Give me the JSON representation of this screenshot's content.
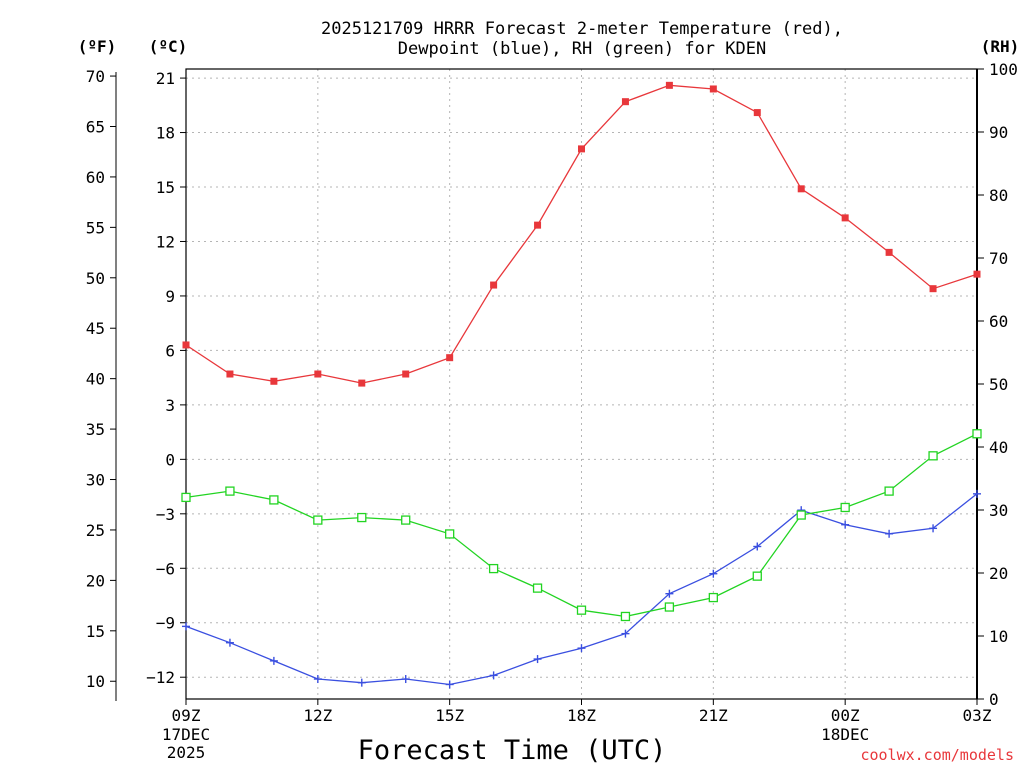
{
  "chart_data": {
    "type": "line",
    "title_line1": "2025121709 HRRR Forecast 2-meter Temperature (red),",
    "title_line2": "Dewpoint (blue), RH (green) for KDEN",
    "xlabel": "Forecast Time (UTC)",
    "units": {
      "fahrenheit": "(ºF)",
      "celsius": "(ºC)",
      "rh": "(RH)"
    },
    "credit": "coolwx.com/models",
    "x_hours": [
      0,
      1,
      2,
      3,
      4,
      5,
      6,
      7,
      8,
      9,
      10,
      11,
      12,
      13,
      14,
      15,
      16,
      17,
      18
    ],
    "x_ticks": [
      {
        "hour": 0,
        "label": "09Z",
        "sub1": "17DEC",
        "sub2": "2025"
      },
      {
        "hour": 3,
        "label": "12Z",
        "sub1": "",
        "sub2": ""
      },
      {
        "hour": 6,
        "label": "15Z",
        "sub1": "",
        "sub2": ""
      },
      {
        "hour": 9,
        "label": "18Z",
        "sub1": "",
        "sub2": ""
      },
      {
        "hour": 12,
        "label": "21Z",
        "sub1": "",
        "sub2": ""
      },
      {
        "hour": 15,
        "label": "00Z",
        "sub1": "18DEC",
        "sub2": ""
      },
      {
        "hour": 18,
        "label": "03Z",
        "sub1": "",
        "sub2": ""
      }
    ],
    "ylim_celsius": [
      -13.2,
      21.5
    ],
    "ylim_rh": [
      0,
      100
    ],
    "celsius_ticks": [
      -12,
      -9,
      -6,
      -3,
      0,
      3,
      6,
      9,
      12,
      15,
      18,
      21
    ],
    "fahrenheit_ticks": [
      10,
      15,
      20,
      25,
      30,
      35,
      40,
      45,
      50,
      55,
      60,
      65,
      70
    ],
    "rh_ticks": [
      0,
      10,
      20,
      30,
      40,
      50,
      60,
      70,
      80,
      90,
      100
    ],
    "series": [
      {
        "name": "Temperature",
        "unit": "celsius",
        "color": "#e8373b",
        "marker": "filled-square",
        "values": [
          6.3,
          4.7,
          4.3,
          4.7,
          4.2,
          4.7,
          5.6,
          9.6,
          12.9,
          17.1,
          19.7,
          20.6,
          20.4,
          19.1,
          14.9,
          13.3,
          11.4,
          9.4,
          10.2
        ]
      },
      {
        "name": "Dewpoint",
        "unit": "celsius",
        "color": "#3a4fe0",
        "marker": "plus",
        "values": [
          -9.2,
          -10.1,
          -11.1,
          -12.1,
          -12.3,
          -12.1,
          -12.4,
          -11.9,
          -11.0,
          -10.4,
          -9.6,
          -7.4,
          -6.3,
          -4.8,
          -2.8,
          -3.6,
          -4.1,
          -3.8,
          -1.9
        ]
      },
      {
        "name": "RH",
        "unit": "rh",
        "color": "#22d422",
        "marker": "open-square",
        "values": [
          32,
          33,
          31.6,
          28.4,
          28.8,
          28.4,
          26.2,
          20.7,
          17.6,
          14.1,
          13.1,
          14.6,
          16.1,
          19.5,
          29.2,
          30.4,
          33,
          38.6,
          42.1
        ]
      }
    ]
  }
}
